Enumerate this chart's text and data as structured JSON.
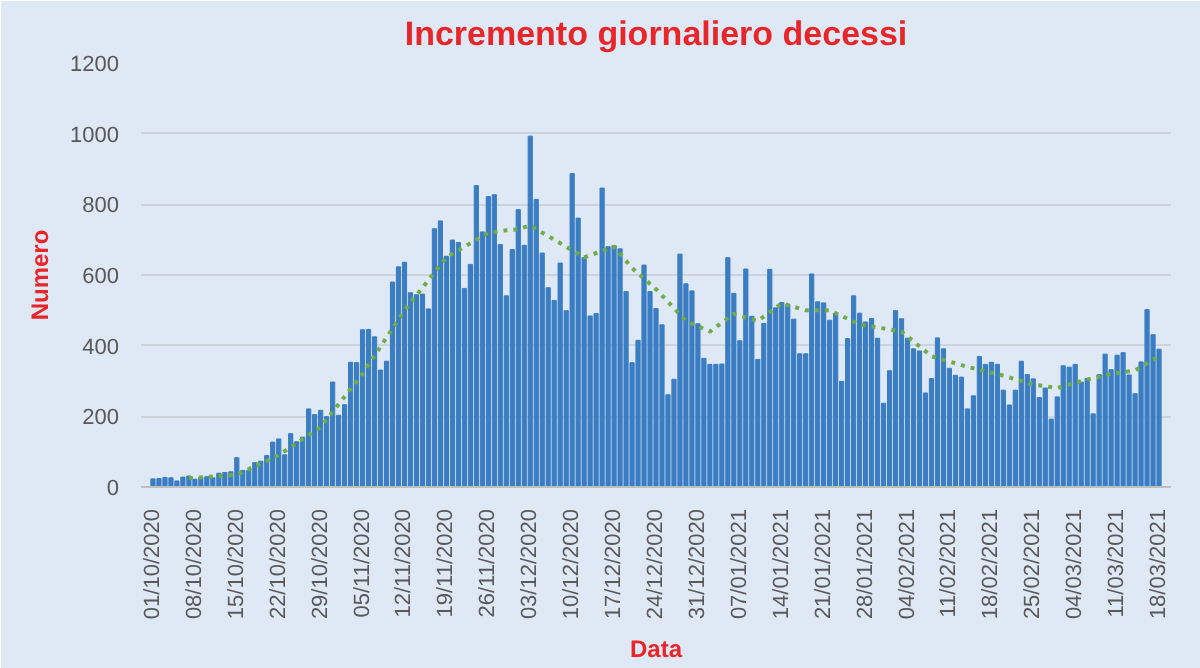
{
  "chart_data": {
    "type": "bar",
    "title": "Incremento giornaliero decessi",
    "xlabel": "Data",
    "ylabel": "Numero",
    "x": [
      "2020-10-01",
      "2020-10-02",
      "2020-10-03",
      "2020-10-04",
      "2020-10-05",
      "2020-10-06",
      "2020-10-07",
      "2020-10-08",
      "2020-10-09",
      "2020-10-10",
      "2020-10-11",
      "2020-10-12",
      "2020-10-13",
      "2020-10-14",
      "2020-10-15",
      "2020-10-16",
      "2020-10-17",
      "2020-10-18",
      "2020-10-19",
      "2020-10-20",
      "2020-10-21",
      "2020-10-22",
      "2020-10-23",
      "2020-10-24",
      "2020-10-25",
      "2020-10-26",
      "2020-10-27",
      "2020-10-28",
      "2020-10-29",
      "2020-10-30",
      "2020-10-31",
      "2020-11-01",
      "2020-11-02",
      "2020-11-03",
      "2020-11-04",
      "2020-11-05",
      "2020-11-06",
      "2020-11-07",
      "2020-11-08",
      "2020-11-09",
      "2020-11-10",
      "2020-11-11",
      "2020-11-12",
      "2020-11-13",
      "2020-11-14",
      "2020-11-15",
      "2020-11-16",
      "2020-11-17",
      "2020-11-18",
      "2020-11-19",
      "2020-11-20",
      "2020-11-21",
      "2020-11-22",
      "2020-11-23",
      "2020-11-24",
      "2020-11-25",
      "2020-11-26",
      "2020-11-27",
      "2020-11-28",
      "2020-11-29",
      "2020-11-30",
      "2020-12-01",
      "2020-12-02",
      "2020-12-03",
      "2020-12-04",
      "2020-12-05",
      "2020-12-06",
      "2020-12-07",
      "2020-12-08",
      "2020-12-09",
      "2020-12-10",
      "2020-12-11",
      "2020-12-12",
      "2020-12-13",
      "2020-12-14",
      "2020-12-15",
      "2020-12-16",
      "2020-12-17",
      "2020-12-18",
      "2020-12-19",
      "2020-12-20",
      "2020-12-21",
      "2020-12-22",
      "2020-12-23",
      "2020-12-24",
      "2020-12-25",
      "2020-12-26",
      "2020-12-27",
      "2020-12-28",
      "2020-12-29",
      "2020-12-30",
      "2020-12-31",
      "2021-01-01",
      "2021-01-02",
      "2021-01-03",
      "2021-01-04",
      "2021-01-05",
      "2021-01-06",
      "2021-01-07",
      "2021-01-08",
      "2021-01-09",
      "2021-01-10",
      "2021-01-11",
      "2021-01-12",
      "2021-01-13",
      "2021-01-14",
      "2021-01-15",
      "2021-01-16",
      "2021-01-17",
      "2021-01-18",
      "2021-01-19",
      "2021-01-20",
      "2021-01-21",
      "2021-01-22",
      "2021-01-23",
      "2021-01-24",
      "2021-01-25",
      "2021-01-26",
      "2021-01-27",
      "2021-01-28",
      "2021-01-29",
      "2021-01-30",
      "2021-01-31",
      "2021-02-01",
      "2021-02-02",
      "2021-02-03",
      "2021-02-04",
      "2021-02-05",
      "2021-02-06",
      "2021-02-07",
      "2021-02-08",
      "2021-02-09",
      "2021-02-10",
      "2021-02-11",
      "2021-02-12",
      "2021-02-13",
      "2021-02-14",
      "2021-02-15",
      "2021-02-16",
      "2021-02-17",
      "2021-02-18",
      "2021-02-19",
      "2021-02-20",
      "2021-02-21",
      "2021-02-22",
      "2021-02-23",
      "2021-02-24",
      "2021-02-25",
      "2021-02-26",
      "2021-02-27",
      "2021-02-28",
      "2021-03-01",
      "2021-03-02",
      "2021-03-03",
      "2021-03-04",
      "2021-03-05",
      "2021-03-06",
      "2021-03-07",
      "2021-03-08",
      "2021-03-09",
      "2021-03-10",
      "2021-03-11",
      "2021-03-12",
      "2021-03-13",
      "2021-03-14",
      "2021-03-15",
      "2021-03-16",
      "2021-03-17",
      "2021-03-18"
    ],
    "series": [
      {
        "color": "#3a7dc2",
        "values": [
          23,
          24,
          27,
          26,
          17,
          28,
          31,
          22,
          28,
          29,
          26,
          39,
          41,
          43,
          83,
          47,
          47,
          69,
          73,
          89,
          127,
          136,
          91,
          151,
          128,
          141,
          221,
          205,
          217,
          199,
          297,
          203,
          233,
          353,
          352,
          445,
          446,
          425,
          331,
          356,
          580,
          623,
          636,
          550,
          544,
          546,
          504,
          731,
          753,
          653,
          699,
          692,
          562,
          630,
          853,
          722,
          822,
          827,
          686,
          541,
          672,
          785,
          684,
          993,
          814,
          662,
          564,
          528,
          634,
          499,
          887,
          761,
          649,
          484,
          491,
          846,
          680,
          683,
          674,
          553,
          352,
          415,
          628,
          553,
          505,
          459,
          261,
          305,
          659,
          575,
          555,
          462,
          364,
          347,
          347,
          348,
          649,
          548,
          414,
          617,
          483,
          361,
          463,
          616,
          507,
          522,
          517,
          475,
          377,
          377,
          603,
          524,
          521,
          472,
          492,
          299,
          420,
          541,
          492,
          467,
          477,
          421,
          237,
          329,
          499,
          476,
          421,
          391,
          385,
          266,
          307,
          422,
          391,
          336,
          316,
          311,
          221,
          258,
          369,
          347,
          353,
          347,
          274,
          232,
          274,
          356,
          318,
          306,
          253,
          280,
          192,
          255,
          343,
          339,
          347,
          297,
          307,
          207,
          318,
          376,
          332,
          373,
          380,
          317,
          264,
          354,
          502,
          431,
          390
        ]
      },
      {
        "type": "line",
        "color": "#70ad47",
        "line_style": "dotted",
        "x": [
          "2020-10-07",
          "2020-10-15",
          "2020-10-22",
          "2020-10-29",
          "2020-11-05",
          "2020-11-12",
          "2020-11-19",
          "2020-11-26",
          "2020-12-01",
          "2020-12-03",
          "2020-12-08",
          "2020-12-12",
          "2020-12-17",
          "2020-12-20",
          "2020-12-24",
          "2020-12-29",
          "2021-01-02",
          "2021-01-06",
          "2021-01-10",
          "2021-01-14",
          "2021-01-18",
          "2021-01-22",
          "2021-01-27",
          "2021-02-03",
          "2021-02-08",
          "2021-02-14",
          "2021-02-19",
          "2021-02-25",
          "2021-03-01",
          "2021-03-05",
          "2021-03-10",
          "2021-03-14",
          "2021-03-18"
        ],
        "values": [
          25,
          35,
          90,
          170,
          320,
          500,
          650,
          720,
          730,
          740,
          690,
          650,
          680,
          620,
          560,
          470,
          440,
          490,
          470,
          520,
          500,
          500,
          460,
          440,
          370,
          340,
          320,
          290,
          280,
          300,
          320,
          330,
          370
        ]
      }
    ],
    "xlim": [
      "2020-09-29",
      "2021-03-20"
    ],
    "xticks": [
      {
        "value": "2020-10-01",
        "label": "01/10/2020"
      },
      {
        "value": "2020-10-08",
        "label": "08/10/2020"
      },
      {
        "value": "2020-10-15",
        "label": "15/10/2020"
      },
      {
        "value": "2020-10-22",
        "label": "22/10/2020"
      },
      {
        "value": "2020-10-29",
        "label": "29/10/2020"
      },
      {
        "value": "2020-11-05",
        "label": "05/11/2020"
      },
      {
        "value": "2020-11-12",
        "label": "12/11/2020"
      },
      {
        "value": "2020-11-19",
        "label": "19/11/2020"
      },
      {
        "value": "2020-11-26",
        "label": "26/11/2020"
      },
      {
        "value": "2020-12-03",
        "label": "03/12/2020"
      },
      {
        "value": "2020-12-10",
        "label": "10/12/2020"
      },
      {
        "value": "2020-12-17",
        "label": "17/12/2020"
      },
      {
        "value": "2020-12-24",
        "label": "24/12/2020"
      },
      {
        "value": "2020-12-31",
        "label": "31/12/2020"
      },
      {
        "value": "2021-01-07",
        "label": "07/01/2021"
      },
      {
        "value": "2021-01-14",
        "label": "14/01/2021"
      },
      {
        "value": "2021-01-21",
        "label": "21/01/2021"
      },
      {
        "value": "2021-01-28",
        "label": "28/01/2021"
      },
      {
        "value": "2021-02-04",
        "label": "04/02/2021"
      },
      {
        "value": "2021-02-11",
        "label": "11/02/2021"
      },
      {
        "value": "2021-02-18",
        "label": "18/02/2021"
      },
      {
        "value": "2021-02-25",
        "label": "25/02/2021"
      },
      {
        "value": "2021-03-04",
        "label": "04/03/2021"
      },
      {
        "value": "2021-03-11",
        "label": "11/03/2021"
      },
      {
        "value": "2021-03-18",
        "label": "18/03/2021"
      }
    ],
    "ylim": [
      0,
      1200
    ],
    "yticks": [
      0,
      200,
      400,
      600,
      800,
      1000,
      1200
    ],
    "grid": "y",
    "marker": "none"
  }
}
